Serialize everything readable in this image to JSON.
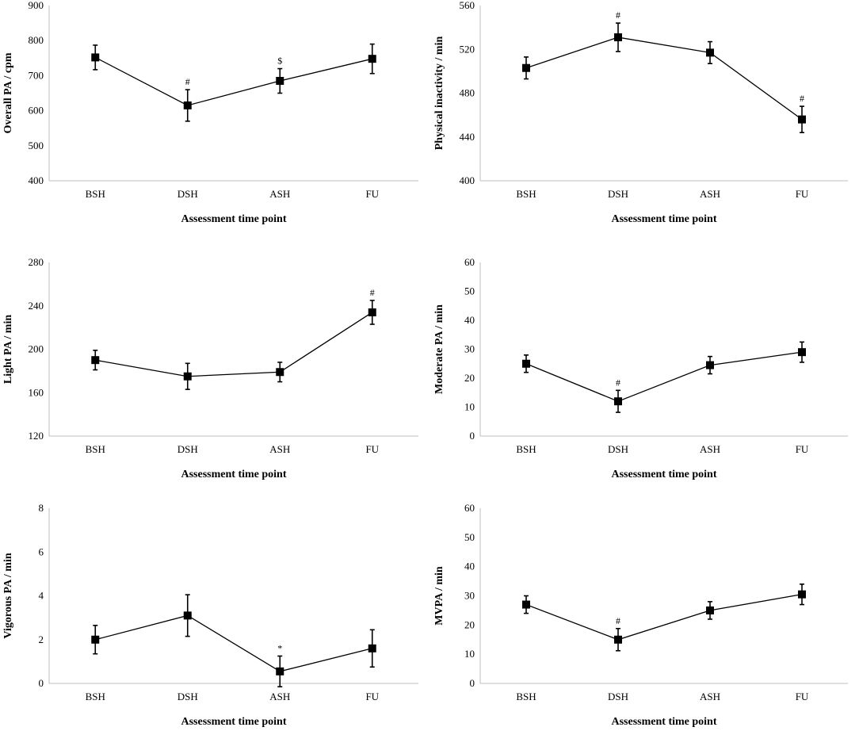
{
  "chart_data": [
    {
      "type": "line",
      "categories": [
        "BSH",
        "DSH",
        "ASH",
        "FU"
      ],
      "values": [
        752,
        615,
        685,
        748
      ],
      "error": [
        35,
        45,
        35,
        42
      ],
      "annotations": [
        "",
        "#",
        "$",
        ""
      ],
      "ylabel": "Overall PA / cpm",
      "xlabel": "Assessment time point",
      "ylim": [
        400,
        900
      ],
      "yticks": [
        "400",
        "500",
        "600",
        "700",
        "800",
        "900"
      ],
      "ytick_values": [
        400,
        500,
        600,
        700,
        800,
        900
      ]
    },
    {
      "type": "line",
      "categories": [
        "BSH",
        "DSH",
        "ASH",
        "FU"
      ],
      "values": [
        503,
        531,
        517,
        456
      ],
      "error": [
        10,
        13,
        10,
        12
      ],
      "annotations": [
        "",
        "#",
        "",
        "#"
      ],
      "ylabel": "Physical inactivity / min",
      "xlabel": "Assessment time point",
      "ylim": [
        400,
        560
      ],
      "yticks": [
        "400",
        "440",
        "480",
        "520",
        "560"
      ],
      "ytick_values": [
        400,
        440,
        480,
        520,
        560
      ]
    },
    {
      "type": "line",
      "categories": [
        "BSH",
        "DSH",
        "ASH",
        "FU"
      ],
      "values": [
        190,
        175,
        179,
        234
      ],
      "error": [
        9,
        12,
        9,
        11
      ],
      "annotations": [
        "",
        "",
        "",
        "#"
      ],
      "ylabel": "Light PA / min",
      "xlabel": "Assessment time point",
      "ylim": [
        120,
        280
      ],
      "yticks": [
        "120",
        "160",
        "200",
        "240",
        "280"
      ],
      "ytick_values": [
        120,
        160,
        200,
        240,
        280
      ]
    },
    {
      "type": "line",
      "categories": [
        "BSH",
        "DSH",
        "ASH",
        "FU"
      ],
      "values": [
        25,
        12,
        24.5,
        29
      ],
      "error": [
        3,
        3.8,
        3,
        3.5
      ],
      "annotations": [
        "",
        "#",
        "",
        ""
      ],
      "ylabel": "Moderate PA / min",
      "xlabel": "Assessment time point",
      "ylim": [
        0,
        60
      ],
      "yticks": [
        "0",
        "10",
        "20",
        "30",
        "40",
        "50",
        "60"
      ],
      "ytick_values": [
        0,
        10,
        20,
        30,
        40,
        50,
        60
      ]
    },
    {
      "type": "line",
      "categories": [
        "BSH",
        "DSH",
        "ASH",
        "FU"
      ],
      "values": [
        2.0,
        3.1,
        0.55,
        1.6
      ],
      "error": [
        0.65,
        0.95,
        0.7,
        0.85
      ],
      "annotations": [
        "",
        "",
        "*",
        ""
      ],
      "ylabel": "Vigorous PA / min",
      "xlabel": "Assessment time point",
      "ylim": [
        0,
        8
      ],
      "yticks": [
        "0",
        "2",
        "4",
        "6",
        "8"
      ],
      "ytick_values": [
        0,
        2,
        4,
        6,
        8
      ]
    },
    {
      "type": "line",
      "categories": [
        "BSH",
        "DSH",
        "ASH",
        "FU"
      ],
      "values": [
        27,
        15,
        25,
        30.5
      ],
      "error": [
        3,
        3.8,
        3,
        3.5
      ],
      "annotations": [
        "",
        "#",
        "",
        ""
      ],
      "ylabel": "MVPA / min",
      "xlabel": "Assessment time point",
      "ylim": [
        0,
        60
      ],
      "yticks": [
        "0",
        "10",
        "20",
        "30",
        "40",
        "50",
        "60"
      ],
      "ytick_values": [
        0,
        10,
        20,
        30,
        40,
        50,
        60
      ]
    }
  ]
}
